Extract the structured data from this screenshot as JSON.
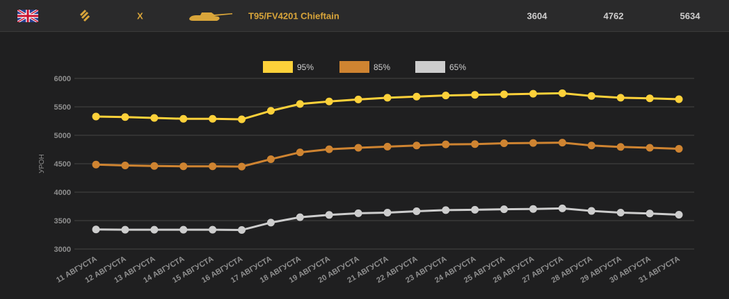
{
  "header": {
    "flag_icon": "uk-flag-icon",
    "rank_icon": "rank-chevrons-icon",
    "tier": "X",
    "tank_icon": "tank-silhouette-icon",
    "tank_name": "T95/FV4201 Chieftain",
    "values": [
      "3604",
      "4762",
      "5634"
    ]
  },
  "chart_data": {
    "type": "line",
    "ylabel": "УРОН",
    "ylim": [
      3000,
      6000
    ],
    "yticks": [
      "6000",
      "5500",
      "5000",
      "4500",
      "4000",
      "3500",
      "3000"
    ],
    "grid": true,
    "legend_position": "top-center",
    "categories": [
      "11 АВГУСТА",
      "12 АВГУСТА",
      "13 АВГУСТА",
      "14 АВГУСТА",
      "15 АВГУСТА",
      "16 АВГУСТА",
      "17 АВГУСТА",
      "18 АВГУСТА",
      "19 АВГУСТА",
      "20 АВГУСТА",
      "21 АВГУСТА",
      "22 АВГУСТА",
      "23 АВГУСТА",
      "24 АВГУСТА",
      "25 АВГУСТА",
      "26 АВГУСТА",
      "27 АВГУСТА",
      "28 АВГУСТА",
      "29 АВГУСТА",
      "30 АВГУСТА",
      "31 АВГУСТА"
    ],
    "series": [
      {
        "name": "95%",
        "color": "#fdd13a",
        "values": [
          5330,
          5320,
          5305,
          5290,
          5290,
          5280,
          5430,
          5550,
          5595,
          5630,
          5660,
          5680,
          5700,
          5710,
          5720,
          5730,
          5740,
          5690,
          5660,
          5650,
          5634
        ]
      },
      {
        "name": "85%",
        "color": "#cf8431",
        "values": [
          4485,
          4470,
          4460,
          4455,
          4455,
          4450,
          4580,
          4700,
          4755,
          4780,
          4800,
          4820,
          4840,
          4845,
          4860,
          4865,
          4870,
          4820,
          4795,
          4780,
          4762
        ]
      },
      {
        "name": "65%",
        "color": "#cdcdcd",
        "values": [
          3345,
          3340,
          3340,
          3340,
          3340,
          3335,
          3465,
          3560,
          3600,
          3630,
          3640,
          3665,
          3685,
          3690,
          3700,
          3705,
          3715,
          3670,
          3640,
          3625,
          3604
        ]
      }
    ]
  }
}
